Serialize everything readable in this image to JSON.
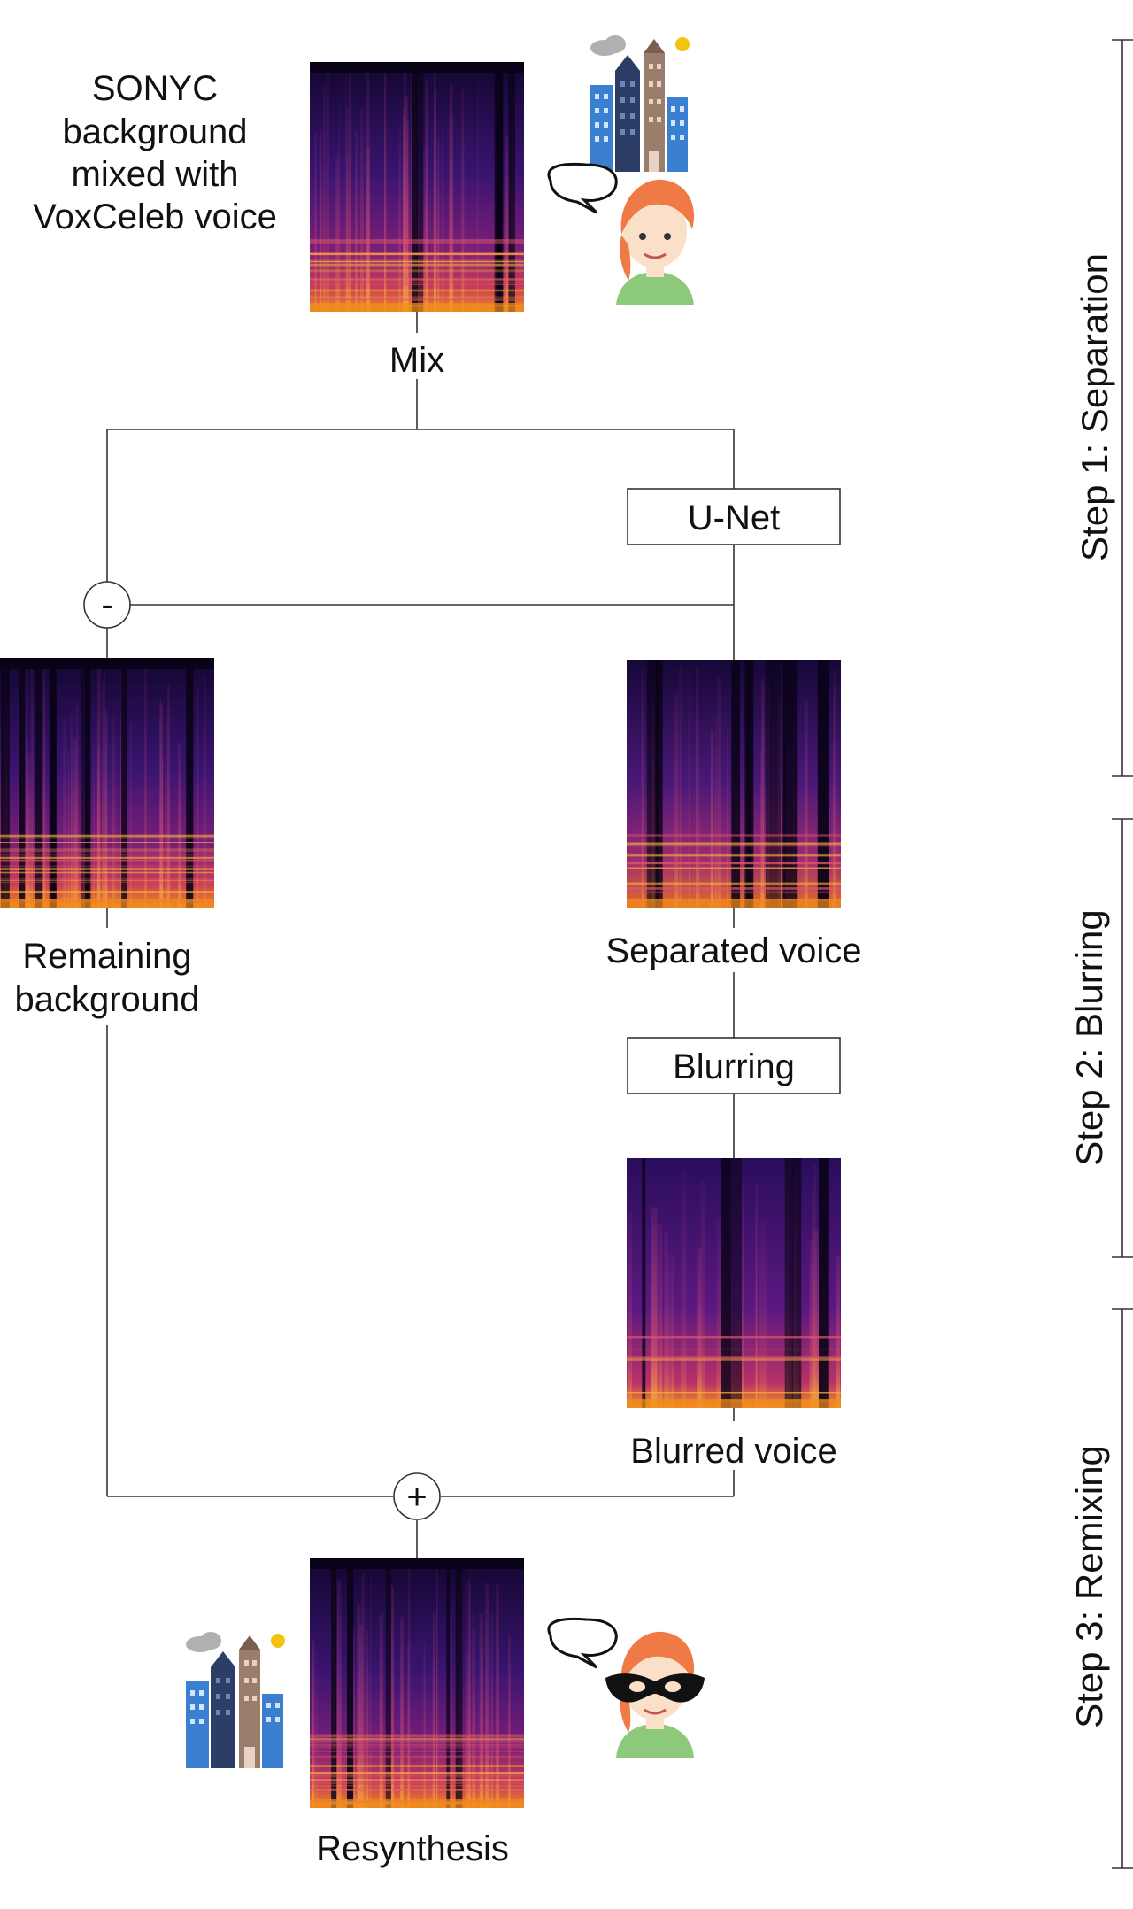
{
  "title_lines": [
    "SONYC",
    "background",
    "mixed with",
    "VoxCeleb voice"
  ],
  "mix_label": "Mix",
  "unet_label": "U-Net",
  "minus_symbol": "-",
  "remaining_lines": [
    "Remaining",
    "background"
  ],
  "separated_label": "Separated voice",
  "blurring_label": "Blurring",
  "blurred_label": "Blurred voice",
  "plus_symbol": "+",
  "resynthesis_label": "Resynthesis",
  "steps": [
    "Step 1: Separation",
    "Step 2: Blurring",
    "Step 3: Remixing"
  ],
  "colors": {
    "spec_bg": "#2a0f5c",
    "spec_dark": "#0a0318",
    "spec_hot": "#f08a1c",
    "spec_warm": "#c2306b",
    "spec_yellow": "#f7d23a",
    "building_blue": "#3b7fd0",
    "building_navy": "#2c3d66",
    "building_tan": "#9a7d6a",
    "sun": "#f2c40f",
    "cloud": "#b0b0b0",
    "hair": "#f07a45",
    "skin": "#fbe0c9",
    "shirt": "#8cc97a",
    "mask": "#111111"
  }
}
